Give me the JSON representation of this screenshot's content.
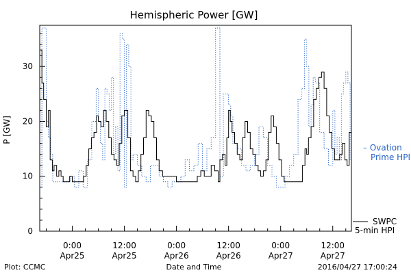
{
  "chart_data": {
    "type": "line",
    "title": "Hemispheric Power [GW]",
    "ylabel": "P [GW]",
    "xlabel": "Date and Time",
    "ylim": [
      0,
      37.5
    ],
    "y_ticks": [
      0,
      10,
      20,
      30
    ],
    "x_range_hours": [
      -7.5,
      64.3
    ],
    "x_ticks": [
      {
        "hours": 0,
        "time": "0:00",
        "date": "Apr25"
      },
      {
        "hours": 12,
        "time": "12:00",
        "date": "Apr25"
      },
      {
        "hours": 24,
        "time": "0:00",
        "date": "Apr26"
      },
      {
        "hours": 36,
        "time": "12:00",
        "date": "Apr26"
      },
      {
        "hours": 48,
        "time": "0:00",
        "date": "Apr27"
      },
      {
        "hours": 60,
        "time": "12:00",
        "date": "Apr27"
      }
    ],
    "grid": false,
    "series": [
      {
        "name": "SWPC 5-min HPI",
        "label_lines": [
          "SWPC",
          "5-min HPI"
        ],
        "color": "#000000",
        "style": "solid",
        "x": [
          -7.5,
          -7.0,
          -6.6,
          -6.0,
          -5.5,
          -5.1,
          -4.6,
          -4.2,
          -3.6,
          -3.1,
          -2.6,
          -2.1,
          -1.5,
          -1.0,
          -0.6,
          0.0,
          0.6,
          1.2,
          2.0,
          2.6,
          3.2,
          3.8,
          4.4,
          5.0,
          5.6,
          6.0,
          6.6,
          7.2,
          7.8,
          8.4,
          9.0,
          9.6,
          10.2,
          10.8,
          11.4,
          12.0,
          12.8,
          13.4,
          14.0,
          14.6,
          15.2,
          15.8,
          16.4,
          17.0,
          17.6,
          18.2,
          18.8,
          19.4,
          20.0,
          20.8,
          21.6,
          22.4,
          23.2,
          24.0,
          24.8,
          25.6,
          26.4,
          27.2,
          28.0,
          28.8,
          29.6,
          30.4,
          31.2,
          32.0,
          32.8,
          33.6,
          34.0,
          34.6,
          35.2,
          35.6,
          36.0,
          36.4,
          36.8,
          37.4,
          38.0,
          38.6,
          39.2,
          39.8,
          40.4,
          41.0,
          41.6,
          42.2,
          42.8,
          43.4,
          44.0,
          44.6,
          45.2,
          45.8,
          46.4,
          47.0,
          47.6,
          48.2,
          48.8,
          49.4,
          50.0,
          50.6,
          51.2,
          51.8,
          52.4,
          53.0,
          53.6,
          54.0,
          54.4,
          55.0,
          55.6,
          56.2,
          56.8,
          57.4,
          58.0,
          58.6,
          59.2,
          59.8,
          60.4,
          61.0,
          61.6,
          62.2,
          62.8,
          63.3,
          63.8,
          64.3
        ],
        "y": [
          33,
          27,
          24,
          19,
          22,
          13,
          11,
          12,
          10,
          11,
          10,
          9,
          9,
          9,
          10,
          9,
          9,
          9,
          9,
          10,
          12,
          15,
          17,
          18,
          21,
          20,
          19,
          22,
          20,
          17,
          14,
          13,
          12,
          16,
          21,
          22,
          17,
          11,
          10,
          9,
          11,
          14,
          17,
          22,
          21,
          20,
          17,
          13,
          11,
          10,
          10,
          10,
          10,
          9,
          9,
          9,
          9,
          9,
          9,
          10,
          11,
          10,
          10,
          12,
          11,
          9,
          13,
          14,
          12,
          17,
          22,
          20,
          18,
          16,
          14,
          13,
          17,
          20,
          18,
          15,
          14,
          12,
          11,
          10,
          11,
          13,
          18,
          21,
          19,
          16,
          13,
          10,
          9,
          9,
          9,
          9,
          9,
          9,
          9,
          12,
          15,
          14,
          17,
          19,
          24,
          26,
          28,
          29,
          26,
          21,
          18,
          15,
          13,
          13,
          14,
          16,
          13,
          12,
          18,
          12
        ]
      },
      {
        "name": "Ovation Prime HPI",
        "label_lines": [
          "– Ovation",
          "Prime HPI"
        ],
        "color": "#2a64c8",
        "style": "dotted",
        "x": [
          -7.5,
          -7.0,
          -6.5,
          -6.0,
          -5.5,
          -5.0,
          -4.5,
          -3.5,
          -2.5,
          -1.5,
          -0.5,
          0.5,
          1.5,
          2.5,
          3.5,
          4.5,
          5.5,
          6.0,
          6.5,
          7.0,
          7.5,
          8.0,
          8.5,
          9.0,
          9.5,
          10.0,
          10.5,
          11.0,
          11.5,
          12.0,
          12.5,
          13.0,
          13.5,
          14.0,
          15.0,
          16.0,
          17.0,
          18.0,
          19.0,
          20.0,
          21.0,
          22.0,
          23.0,
          24.0,
          25.0,
          26.0,
          27.0,
          28.0,
          29.0,
          30.0,
          31.0,
          32.0,
          33.0,
          34.0,
          34.8,
          35.5,
          36.0,
          36.5,
          37.0,
          38.0,
          39.0,
          40.0,
          41.0,
          42.0,
          43.0,
          44.0,
          45.0,
          46.0,
          47.0,
          48.0,
          49.0,
          50.0,
          51.0,
          52.0,
          52.8,
          53.5,
          54.0,
          54.5,
          55.0,
          55.5,
          56.0,
          57.0,
          58.0,
          59.0,
          60.0,
          60.5,
          61.0,
          61.5,
          62.0,
          62.5,
          63.0,
          63.5,
          64.0
        ],
        "y": [
          8,
          37,
          37,
          20,
          17,
          14,
          9,
          9,
          9,
          9,
          10,
          8,
          11,
          8,
          13,
          20,
          26,
          20,
          16,
          13,
          26,
          25,
          22,
          28,
          14,
          19,
          11,
          36,
          35,
          8,
          34,
          30,
          13,
          14,
          12,
          10,
          9,
          12,
          12,
          10,
          9,
          8,
          9,
          9,
          10,
          13,
          11,
          12,
          16,
          11,
          15,
          17,
          37,
          10,
          25,
          25,
          23,
          21,
          16,
          15,
          12,
          11,
          12,
          14,
          19,
          17,
          12,
          10,
          8,
          8,
          10,
          12,
          14,
          24,
          26,
          35,
          30,
          19,
          23,
          28,
          27,
          18,
          15,
          12,
          22,
          14,
          17,
          13,
          25,
          27,
          29,
          27,
          13
        ]
      }
    ],
    "footer": {
      "left": "Plot: CCMC",
      "center": "Date and Time",
      "right": "2016/04/27 17:00:24"
    }
  }
}
